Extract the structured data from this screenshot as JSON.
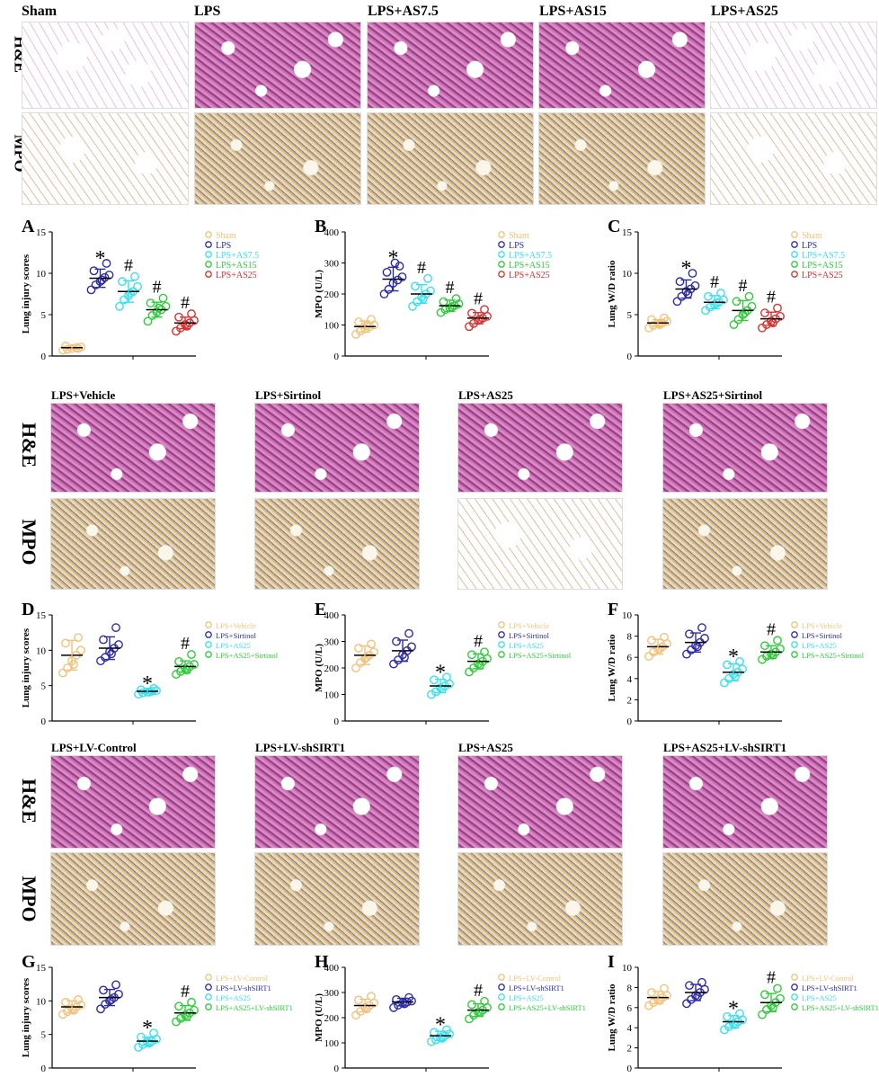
{
  "section1": {
    "columns": [
      "Sham",
      "LPS",
      "LPS+AS7.5",
      "LPS+AS15",
      "LPS+AS25"
    ],
    "rows": [
      "H&E",
      "MPO"
    ]
  },
  "section2": {
    "columns": [
      "LPS+Vehicle",
      "LPS+Sirtinol",
      "LPS+AS25",
      "LPS+AS25+Sirtinol"
    ],
    "rows": [
      "H&E",
      "MPO"
    ]
  },
  "section3": {
    "columns": [
      "LPS+LV-Control",
      "LPS+LV-shSIRT1",
      "LPS+AS25",
      "LPS+AS25+LV-shSIRT1"
    ],
    "rows": [
      "H&E",
      "MPO"
    ]
  },
  "colors": {
    "c1": "#F2C27A",
    "c2": "#2E2BA8",
    "c3": "#39E0EE",
    "c4": "#2ECC3A",
    "c5": "#D93030"
  },
  "chart_data": [
    {
      "id": "A",
      "type": "scatter",
      "ylabel": "Lung injury scores",
      "ylim": [
        0,
        15
      ],
      "yticks": [
        0,
        5,
        10,
        15
      ],
      "series": [
        {
          "name": "Sham",
          "color": "#F2C27A",
          "mean": 1.0,
          "sd": 0.2,
          "values": [
            0.7,
            0.8,
            0.9,
            1.0,
            1.1,
            1.2,
            0.9
          ],
          "mark": ""
        },
        {
          "name": "LPS",
          "color": "#2E2BA8",
          "mean": 9.4,
          "sd": 1.1,
          "values": [
            8.0,
            8.6,
            9.0,
            9.5,
            9.8,
            10.3,
            11.2,
            9.2
          ],
          "mark": "*"
        },
        {
          "name": "LPS+AS7.5",
          "color": "#39E0EE",
          "mean": 7.8,
          "sd": 1.3,
          "values": [
            6.0,
            6.8,
            7.3,
            7.8,
            8.4,
            9.0,
            9.6,
            7.6
          ],
          "mark": "#"
        },
        {
          "name": "LPS+AS15",
          "color": "#2ECC3A",
          "mean": 5.6,
          "sd": 0.9,
          "values": [
            4.2,
            4.9,
            5.3,
            5.6,
            6.0,
            6.4,
            7.0,
            5.8
          ],
          "mark": "#"
        },
        {
          "name": "LPS+AS25",
          "color": "#D93030",
          "mean": 4.0,
          "sd": 0.7,
          "values": [
            3.0,
            3.4,
            3.8,
            4.0,
            4.3,
            4.7,
            5.1,
            3.6
          ],
          "mark": "#"
        }
      ]
    },
    {
      "id": "B",
      "type": "scatter",
      "ylabel": "MPO (U/L)",
      "ylim": [
        0,
        400
      ],
      "yticks": [
        0,
        100,
        200,
        300,
        400
      ],
      "series": [
        {
          "name": "Sham",
          "color": "#F2C27A",
          "mean": 95,
          "sd": 18,
          "values": [
            70,
            80,
            88,
            95,
            100,
            110,
            118,
            98
          ],
          "mark": ""
        },
        {
          "name": "LPS",
          "color": "#2E2BA8",
          "mean": 248,
          "sd": 38,
          "values": [
            200,
            215,
            235,
            245,
            255,
            270,
            290,
            300
          ],
          "mark": "*"
        },
        {
          "name": "LPS+AS7.5",
          "color": "#39E0EE",
          "mean": 200,
          "sd": 30,
          "values": [
            160,
            175,
            190,
            200,
            210,
            225,
            250,
            185
          ],
          "mark": "#"
        },
        {
          "name": "LPS+AS15",
          "color": "#2ECC3A",
          "mean": 162,
          "sd": 18,
          "values": [
            140,
            150,
            155,
            162,
            168,
            175,
            185,
            158
          ],
          "mark": "#"
        },
        {
          "name": "LPS+AS25",
          "color": "#D93030",
          "mean": 122,
          "sd": 18,
          "values": [
            95,
            105,
            115,
            122,
            128,
            138,
            150,
            118
          ],
          "mark": "#"
        }
      ]
    },
    {
      "id": "C",
      "type": "scatter",
      "ylabel": "Lung  W/D ratio",
      "ylim": [
        0,
        15
      ],
      "yticks": [
        0,
        5,
        10,
        15
      ],
      "series": [
        {
          "name": "Sham",
          "color": "#F2C27A",
          "mean": 4.0,
          "sd": 0.4,
          "values": [
            3.4,
            3.7,
            3.9,
            4.0,
            4.2,
            4.4,
            4.6,
            3.8
          ],
          "mark": ""
        },
        {
          "name": "LPS",
          "color": "#2E2BA8",
          "mean": 8.1,
          "sd": 1.1,
          "values": [
            6.6,
            7.2,
            7.8,
            8.1,
            8.5,
            9.0,
            10.0,
            7.5
          ],
          "mark": "*"
        },
        {
          "name": "LPS+AS7.5",
          "color": "#39E0EE",
          "mean": 6.5,
          "sd": 0.8,
          "values": [
            5.5,
            5.9,
            6.2,
            6.5,
            6.8,
            7.2,
            7.6,
            6.4
          ],
          "mark": "#"
        },
        {
          "name": "LPS+AS15",
          "color": "#2ECC3A",
          "mean": 5.5,
          "sd": 1.2,
          "values": [
            3.8,
            4.4,
            5.0,
            5.5,
            6.0,
            6.6,
            7.2,
            5.2
          ],
          "mark": "#"
        },
        {
          "name": "LPS+AS25",
          "color": "#D93030",
          "mean": 4.5,
          "sd": 0.8,
          "values": [
            3.4,
            3.8,
            4.2,
            4.5,
            4.8,
            5.2,
            5.8,
            4.0
          ],
          "mark": "#"
        }
      ]
    },
    {
      "id": "D",
      "type": "scatter",
      "ylabel": "Lung injury scores",
      "ylim": [
        0,
        15
      ],
      "yticks": [
        0,
        5,
        10,
        15
      ],
      "series": [
        {
          "name": "LPS+Vehicle",
          "color": "#F2C27A",
          "mean": 9.3,
          "sd": 2.1,
          "values": [
            6.8,
            7.5,
            8.5,
            9.3,
            10.0,
            11.0,
            11.8,
            8.0
          ],
          "mark": ""
        },
        {
          "name": "LPS+Sirtinol",
          "color": "#2E2BA8",
          "mean": 10.3,
          "sd": 1.6,
          "values": [
            8.5,
            9.0,
            9.8,
            10.3,
            10.8,
            11.5,
            13.2,
            9.5
          ],
          "mark": ""
        },
        {
          "name": "LPS+AS25",
          "color": "#39E0EE",
          "mean": 4.2,
          "sd": 0.3,
          "values": [
            3.8,
            4.0,
            4.1,
            4.2,
            4.3,
            4.4,
            4.6,
            4.1
          ],
          "mark": "*"
        },
        {
          "name": "LPS+AS25+Sirtinol",
          "color": "#2ECC3A",
          "mean": 7.7,
          "sd": 0.8,
          "values": [
            6.6,
            7.0,
            7.4,
            7.7,
            8.0,
            8.4,
            9.4,
            7.2
          ],
          "mark": "#"
        }
      ]
    },
    {
      "id": "E",
      "type": "scatter",
      "ylabel": "MPO (U/L)",
      "ylim": [
        0,
        400
      ],
      "yticks": [
        0,
        100,
        200,
        300,
        400
      ],
      "series": [
        {
          "name": "LPS+Vehicle",
          "color": "#F2C27A",
          "mean": 248,
          "sd": 35,
          "values": [
            200,
            220,
            235,
            248,
            260,
            275,
            290,
            240
          ],
          "mark": ""
        },
        {
          "name": "LPS+Sirtinol",
          "color": "#2E2BA8",
          "mean": 265,
          "sd": 40,
          "values": [
            215,
            230,
            250,
            265,
            280,
            300,
            330,
            240
          ],
          "mark": ""
        },
        {
          "name": "LPS+AS25",
          "color": "#39E0EE",
          "mean": 132,
          "sd": 25,
          "values": [
            100,
            110,
            125,
            132,
            140,
            155,
            165,
            120
          ],
          "mark": "*"
        },
        {
          "name": "LPS+AS25+Sirtinol",
          "color": "#2ECC3A",
          "mean": 225,
          "sd": 28,
          "values": [
            185,
            200,
            215,
            225,
            235,
            250,
            260,
            210
          ],
          "mark": "#"
        }
      ]
    },
    {
      "id": "F",
      "type": "scatter",
      "ylabel": "Lung W/D ratio",
      "ylim": [
        0,
        10
      ],
      "yticks": [
        0,
        2,
        4,
        6,
        8,
        10
      ],
      "series": [
        {
          "name": "LPS+Vehicle",
          "color": "#F2C27A",
          "mean": 7.0,
          "sd": 0.7,
          "values": [
            6.1,
            6.5,
            6.8,
            7.0,
            7.3,
            7.6,
            7.9,
            6.8
          ],
          "mark": ""
        },
        {
          "name": "LPS+Sirtinol",
          "color": "#2E2BA8",
          "mean": 7.4,
          "sd": 0.9,
          "values": [
            6.3,
            6.7,
            7.1,
            7.4,
            7.8,
            8.2,
            8.8,
            7.0
          ],
          "mark": ""
        },
        {
          "name": "LPS+AS25",
          "color": "#39E0EE",
          "mean": 4.6,
          "sd": 0.8,
          "values": [
            3.6,
            4.0,
            4.4,
            4.6,
            4.9,
            5.3,
            5.6,
            4.2
          ],
          "mark": "*"
        },
        {
          "name": "LPS+AS25+Sirtinol",
          "color": "#2ECC3A",
          "mean": 6.5,
          "sd": 0.6,
          "values": [
            5.8,
            6.1,
            6.3,
            6.5,
            6.8,
            7.1,
            7.6,
            6.2
          ],
          "mark": "#"
        }
      ]
    },
    {
      "id": "G",
      "type": "scatter",
      "ylabel": "Lung injury scores",
      "ylim": [
        0,
        15
      ],
      "yticks": [
        0,
        5,
        10,
        15
      ],
      "series": [
        {
          "name": "LPS+LV-Control",
          "color": "#F2C27A",
          "mean": 9.1,
          "sd": 0.9,
          "values": [
            8.0,
            8.4,
            8.8,
            9.1,
            9.4,
            9.8,
            10.2,
            8.6
          ],
          "mark": ""
        },
        {
          "name": "LPS+LV-shSIRT1",
          "color": "#2E2BA8",
          "mean": 10.5,
          "sd": 1.2,
          "values": [
            8.8,
            9.5,
            10.0,
            10.5,
            11.0,
            11.6,
            12.4,
            10.2
          ],
          "mark": ""
        },
        {
          "name": "LPS+AS25",
          "color": "#39E0EE",
          "mean": 4.0,
          "sd": 0.6,
          "values": [
            3.1,
            3.5,
            3.8,
            4.0,
            4.3,
            4.6,
            5.2,
            3.7
          ],
          "mark": "*"
        },
        {
          "name": "LPS+AS25+LV-shSIRT1",
          "color": "#2ECC3A",
          "mean": 8.2,
          "sd": 1.1,
          "values": [
            6.9,
            7.4,
            7.9,
            8.2,
            8.6,
            9.2,
            9.8,
            7.7
          ],
          "mark": "#"
        }
      ]
    },
    {
      "id": "H",
      "type": "scatter",
      "ylabel": "MPO (U/L)",
      "ylim": [
        0,
        400
      ],
      "yticks": [
        0,
        100,
        200,
        300,
        400
      ],
      "series": [
        {
          "name": "LPS+LV-Control",
          "color": "#F2C27A",
          "mean": 248,
          "sd": 25,
          "values": [
            210,
            225,
            240,
            248,
            258,
            270,
            285,
            235
          ],
          "mark": ""
        },
        {
          "name": "LPS+LV-shSIRT1",
          "color": "#2E2BA8",
          "mean": 262,
          "sd": 15,
          "values": [
            240,
            250,
            258,
            262,
            266,
            272,
            280,
            255
          ],
          "mark": ""
        },
        {
          "name": "LPS+AS25",
          "color": "#39E0EE",
          "mean": 128,
          "sd": 18,
          "values": [
            105,
            112,
            120,
            128,
            135,
            142,
            152,
            118
          ],
          "mark": "*"
        },
        {
          "name": "LPS+AS25+LV-shSIRT1",
          "color": "#2ECC3A",
          "mean": 230,
          "sd": 25,
          "values": [
            195,
            210,
            222,
            230,
            240,
            252,
            265,
            220
          ],
          "mark": "#"
        }
      ]
    },
    {
      "id": "I",
      "type": "scatter",
      "ylabel": "Lung W/D ratio",
      "ylim": [
        0,
        10
      ],
      "yticks": [
        0,
        2,
        4,
        6,
        8,
        10
      ],
      "series": [
        {
          "name": "LPS+LV-Control",
          "color": "#F2C27A",
          "mean": 7.0,
          "sd": 0.6,
          "values": [
            6.2,
            6.5,
            6.8,
            7.0,
            7.2,
            7.5,
            7.9,
            6.7
          ],
          "mark": ""
        },
        {
          "name": "LPS+LV-shSIRT1",
          "color": "#2E2BA8",
          "mean": 7.5,
          "sd": 0.8,
          "values": [
            6.4,
            6.8,
            7.2,
            7.5,
            7.8,
            8.2,
            8.5,
            7.1
          ],
          "mark": ""
        },
        {
          "name": "LPS+AS25",
          "color": "#39E0EE",
          "mean": 4.6,
          "sd": 0.6,
          "values": [
            3.8,
            4.1,
            4.4,
            4.6,
            4.8,
            5.1,
            5.4,
            4.3
          ],
          "mark": "*"
        },
        {
          "name": "LPS+AS25+LV-shSIRT1",
          "color": "#2ECC3A",
          "mean": 6.5,
          "sd": 0.9,
          "values": [
            5.3,
            5.8,
            6.2,
            6.5,
            6.9,
            7.3,
            7.9,
            6.0
          ],
          "mark": "#"
        }
      ]
    }
  ]
}
